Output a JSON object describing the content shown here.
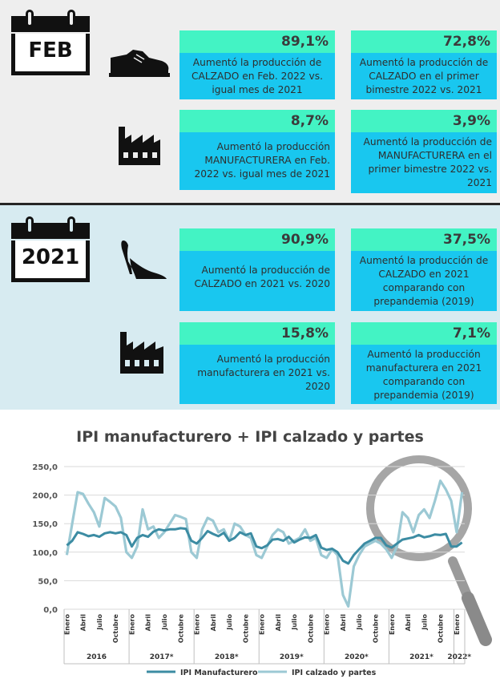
{
  "feb": {
    "calendar_label": "FEB",
    "cards": [
      {
        "pct": "89,1%",
        "text": "Aumentó la producción de CALZADO en Feb. 2022 vs. igual mes de 2021"
      },
      {
        "pct": "72,8%",
        "text": "Aumentó la producción de CALZADO en el primer bimestre 2022 vs. 2021"
      },
      {
        "pct": "8,7%",
        "text": "Aumentó la producción MANUFACTURERA en Feb. 2022 vs. igual mes de 2021"
      },
      {
        "pct": "3,9%",
        "text": "Aumentó la producción de MANUFACTURERA en el primer bimestre 2022 vs. 2021"
      }
    ]
  },
  "y2021": {
    "calendar_label": "2021",
    "cards": [
      {
        "pct": "90,9%",
        "text": "Aumentó la producción de CALZADO en 2021 vs. 2020"
      },
      {
        "pct": "37,5%",
        "text": "Aumentó la producción de CALZADO en 2021 comparando con prepandemia (2019)"
      },
      {
        "pct": "15,8%",
        "text": "Aumentó la producción manufacturera en 2021 vs. 2020"
      },
      {
        "pct": "7,1%",
        "text": "Aumentó la producción manufacturera en 2021 comparando con prepandemia (2019)"
      }
    ]
  },
  "icons": [
    "shoe-icon",
    "factory-icon",
    "high-heel-icon",
    "magnifier-icon",
    "calendar-icon"
  ],
  "colors": {
    "pct_bg": "#43f3c4",
    "desc_bg": "#19c7ef",
    "manufacturing": "#3c8ca3",
    "footwear": "#9cc9d4"
  },
  "chart_data": {
    "type": "line",
    "title": "IPI manufacturero + IPI calzado y partes",
    "ylim": [
      0,
      250
    ],
    "yticks": [
      "0,0",
      "50,0",
      "100,0",
      "150,0",
      "200,0",
      "250,0"
    ],
    "x_month_labels": [
      "Enero",
      "Abril",
      "Julio",
      "Octubre"
    ],
    "year_groups": [
      "2016",
      "2017*",
      "2018*",
      "2019*",
      "2020*",
      "2021*",
      "2022*"
    ],
    "grid": true,
    "legend_position": "bottom",
    "series": [
      {
        "name": "IPI Manufacturero",
        "values": [
          112,
          120,
          135,
          132,
          128,
          130,
          127,
          133,
          135,
          133,
          135,
          130,
          110,
          125,
          130,
          127,
          136,
          140,
          138,
          140,
          140,
          142,
          141,
          120,
          115,
          125,
          137,
          132,
          128,
          134,
          120,
          125,
          135,
          130,
          133,
          110,
          107,
          112,
          122,
          123,
          120,
          127,
          117,
          122,
          126,
          125,
          130,
          108,
          104,
          106,
          100,
          85,
          80,
          95,
          105,
          115,
          120,
          125,
          125,
          112,
          108,
          115,
          122,
          124,
          126,
          130,
          126,
          128,
          131,
          130,
          132,
          110,
          110,
          117
        ]
      },
      {
        "name": "IPI calzado y partes",
        "values": [
          95,
          150,
          205,
          202,
          185,
          170,
          145,
          195,
          188,
          180,
          160,
          100,
          90,
          110,
          175,
          140,
          145,
          125,
          135,
          150,
          165,
          162,
          158,
          100,
          90,
          140,
          160,
          155,
          135,
          140,
          120,
          150,
          145,
          130,
          125,
          95,
          90,
          110,
          130,
          140,
          135,
          115,
          120,
          125,
          140,
          120,
          125,
          95,
          90,
          105,
          95,
          25,
          5,
          75,
          95,
          110,
          115,
          120,
          115,
          105,
          90,
          110,
          170,
          160,
          135,
          165,
          175,
          160,
          190,
          225,
          210,
          190,
          135,
          205
        ]
      }
    ]
  }
}
